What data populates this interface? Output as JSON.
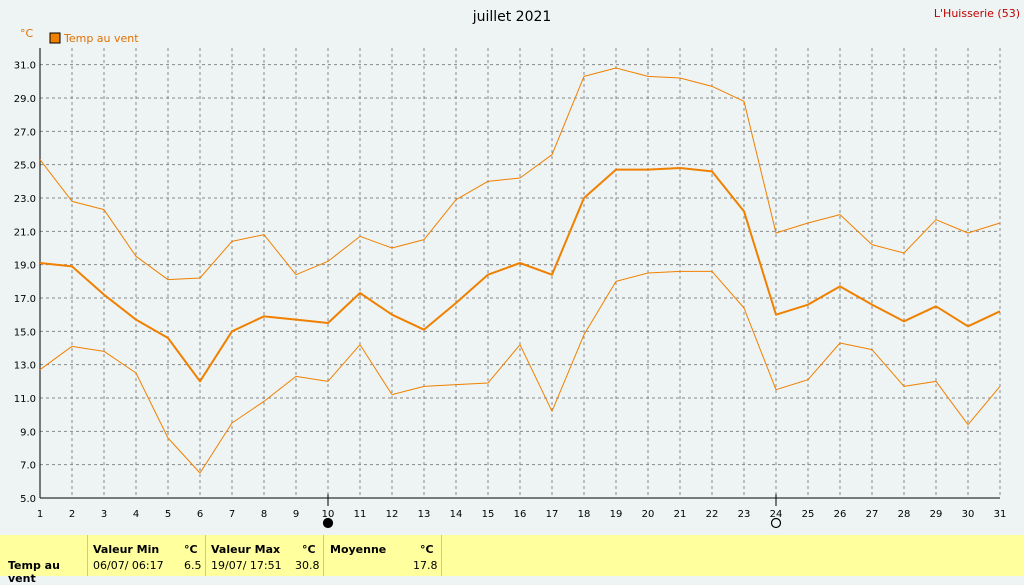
{
  "chart_data": {
    "type": "line",
    "title": "juillet 2021",
    "station": "L'Huisserie (53)",
    "unit": "°C",
    "x": [
      1,
      2,
      3,
      4,
      5,
      6,
      7,
      8,
      9,
      10,
      11,
      12,
      13,
      14,
      15,
      16,
      17,
      18,
      19,
      20,
      21,
      22,
      23,
      24,
      25,
      26,
      27,
      28,
      29,
      30,
      31
    ],
    "y_ticks": [
      "5.0",
      "7.0",
      "9.0",
      "11.0",
      "13.0",
      "15.0",
      "17.0",
      "19.0",
      "21.0",
      "23.0",
      "25.0",
      "27.0",
      "29.0",
      "31.0"
    ],
    "ylim": [
      5,
      32
    ],
    "legend": "Temp au vent",
    "legend_position": "top-left",
    "grid": true,
    "moon_markers": [
      {
        "day": 10,
        "phase": "new-moon"
      },
      {
        "day": 24,
        "phase": "full-moon"
      }
    ],
    "series": [
      {
        "name": "Temp au vent",
        "role": "mean",
        "color": "#f08000",
        "values": [
          19.1,
          18.9,
          17.2,
          15.7,
          14.6,
          12.0,
          15.0,
          15.9,
          15.7,
          15.5,
          17.3,
          16.0,
          15.1,
          16.7,
          18.4,
          19.1,
          18.4,
          23.0,
          24.7,
          24.7,
          24.8,
          24.6,
          22.2,
          16.0,
          16.6,
          17.7,
          16.6,
          15.6,
          16.5,
          15.3,
          16.2
        ]
      },
      {
        "role": "max",
        "color": "#f08000",
        "values": [
          25.3,
          22.8,
          22.3,
          19.5,
          18.1,
          18.2,
          20.4,
          20.8,
          18.4,
          19.2,
          20.7,
          20.0,
          20.5,
          22.9,
          24.0,
          24.2,
          25.6,
          30.3,
          30.8,
          30.3,
          30.2,
          29.7,
          28.8,
          20.9,
          21.5,
          22.0,
          20.2,
          19.7,
          21.7,
          20.9,
          21.5
        ]
      },
      {
        "role": "min",
        "color": "#f08000",
        "values": [
          12.7,
          14.1,
          13.8,
          12.5,
          8.6,
          6.5,
          9.5,
          10.8,
          12.3,
          12.0,
          14.2,
          11.2,
          11.7,
          11.8,
          11.9,
          14.2,
          10.2,
          14.8,
          18.0,
          18.5,
          18.6,
          18.6,
          16.4,
          11.5,
          12.1,
          14.3,
          13.9,
          11.7,
          12.0,
          9.4,
          11.7
        ]
      }
    ]
  },
  "stats": {
    "row_label": "Temp au vent",
    "min": {
      "header": "Valeur Min",
      "unit": "°C",
      "datetime": "06/07/  06:17",
      "value": "6.5"
    },
    "max": {
      "header": "Valeur Max",
      "unit": "°C",
      "datetime": "19/07/  17:51",
      "value": "30.8"
    },
    "mean": {
      "header": "Moyenne",
      "unit": "°C",
      "value": "17.8"
    }
  },
  "colors": {
    "background": "#eef4f4",
    "series": "#f08000",
    "station": "#c00000",
    "stats_background": "#ffff9e"
  }
}
